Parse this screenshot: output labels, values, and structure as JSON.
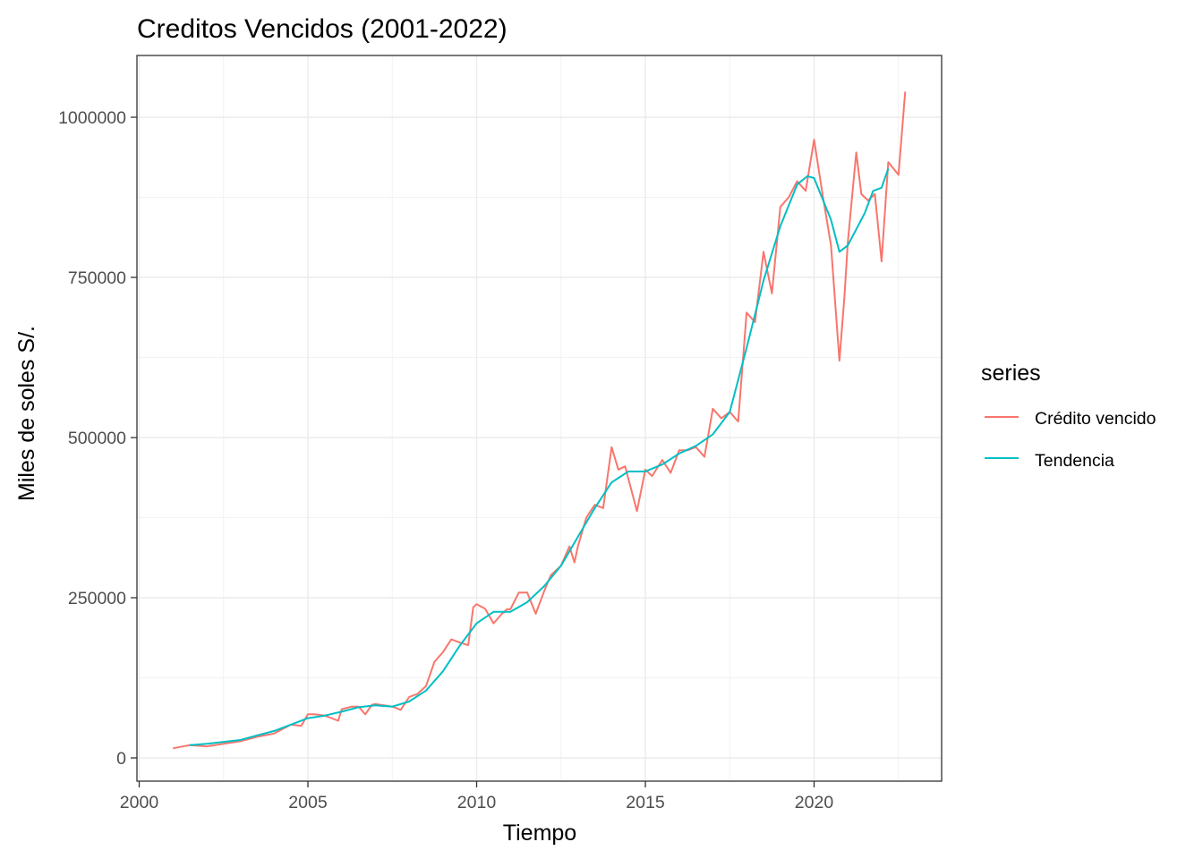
{
  "chart_data": {
    "type": "line",
    "title": "Creditos Vencidos (2001-2022)",
    "xlabel": "Tiempo",
    "ylabel": "Miles de soles S/.",
    "xlim": [
      2000.0,
      2023.8
    ],
    "ylim": [
      -40000,
      1100000
    ],
    "x_ticks": [
      2000,
      2005,
      2010,
      2015,
      2020
    ],
    "x_tick_labels": [
      "2000",
      "2005",
      "2010",
      "2015",
      "2020"
    ],
    "y_ticks": [
      0,
      250000,
      500000,
      750000,
      1000000
    ],
    "y_tick_labels": [
      "0",
      "250000",
      "500000",
      "750000",
      "1000000"
    ],
    "grid": true,
    "legend": {
      "title": "series",
      "position": "right"
    },
    "series": [
      {
        "name": "Crédito vencido",
        "color": "#F8766D",
        "x": [
          2001.0,
          2001.5,
          2002.0,
          2002.5,
          2003.0,
          2003.5,
          2004.0,
          2004.5,
          2004.8,
          2005.0,
          2005.2,
          2005.5,
          2005.9,
          2006.0,
          2006.3,
          2006.5,
          2006.7,
          2006.9,
          2007.0,
          2007.25,
          2007.5,
          2007.75,
          2008.0,
          2008.25,
          2008.5,
          2008.75,
          2009.0,
          2009.25,
          2009.5,
          2009.75,
          2009.9,
          2010.0,
          2010.25,
          2010.5,
          2010.75,
          2010.9,
          2011.0,
          2011.25,
          2011.5,
          2011.75,
          2012.0,
          2012.2,
          2012.5,
          2012.75,
          2012.9,
          2013.0,
          2013.25,
          2013.5,
          2013.75,
          2014.0,
          2014.2,
          2014.4,
          2014.75,
          2015.0,
          2015.2,
          2015.5,
          2015.75,
          2016.0,
          2016.25,
          2016.5,
          2016.75,
          2017.0,
          2017.25,
          2017.5,
          2017.75,
          2018.0,
          2018.25,
          2018.5,
          2018.75,
          2019.0,
          2019.25,
          2019.5,
          2019.75,
          2020.0,
          2020.25,
          2020.5,
          2020.75,
          2020.9,
          2021.0,
          2021.25,
          2021.4,
          2021.6,
          2021.8,
          2022.0,
          2022.2,
          2022.5,
          2022.7
        ],
        "values": [
          15000,
          20000,
          18000,
          22000,
          26000,
          33000,
          38000,
          52000,
          50000,
          68000,
          68000,
          66000,
          58000,
          76000,
          80000,
          80000,
          68000,
          83000,
          84000,
          82000,
          80000,
          75000,
          95000,
          100000,
          112000,
          150000,
          165000,
          185000,
          180000,
          176000,
          235000,
          240000,
          233000,
          210000,
          225000,
          232000,
          232000,
          258000,
          258000,
          225000,
          260000,
          285000,
          300000,
          330000,
          305000,
          330000,
          375000,
          395000,
          390000,
          485000,
          450000,
          455000,
          385000,
          450000,
          440000,
          465000,
          445000,
          480000,
          480000,
          485000,
          470000,
          545000,
          530000,
          540000,
          525000,
          695000,
          680000,
          790000,
          725000,
          860000,
          875000,
          900000,
          885000,
          965000,
          880000,
          800000,
          620000,
          720000,
          805000,
          945000,
          880000,
          870000,
          880000,
          775000,
          930000,
          910000,
          1040000
        ]
      },
      {
        "name": "Tendencia",
        "color": "#00BFC4",
        "x": [
          2001.5,
          2002.0,
          2002.5,
          2003.0,
          2003.5,
          2004.0,
          2004.5,
          2005.0,
          2005.5,
          2006.0,
          2006.5,
          2007.0,
          2007.5,
          2008.0,
          2008.5,
          2009.0,
          2009.5,
          2010.0,
          2010.5,
          2011.0,
          2011.5,
          2012.0,
          2012.5,
          2013.0,
          2013.5,
          2014.0,
          2014.5,
          2015.0,
          2015.5,
          2016.0,
          2016.5,
          2017.0,
          2017.5,
          2018.0,
          2018.5,
          2019.0,
          2019.5,
          2019.8,
          2020.0,
          2020.5,
          2020.75,
          2021.0,
          2021.5,
          2021.75,
          2022.0,
          2022.2
        ],
        "values": [
          20000,
          22000,
          25000,
          28000,
          35000,
          42000,
          52000,
          62000,
          66000,
          72000,
          79000,
          82000,
          80000,
          88000,
          105000,
          135000,
          175000,
          210000,
          228000,
          228000,
          243000,
          268000,
          300000,
          345000,
          390000,
          430000,
          447000,
          447000,
          458000,
          475000,
          487000,
          505000,
          540000,
          640000,
          745000,
          830000,
          895000,
          908000,
          905000,
          840000,
          790000,
          800000,
          850000,
          885000,
          890000,
          920000
        ]
      }
    ]
  }
}
